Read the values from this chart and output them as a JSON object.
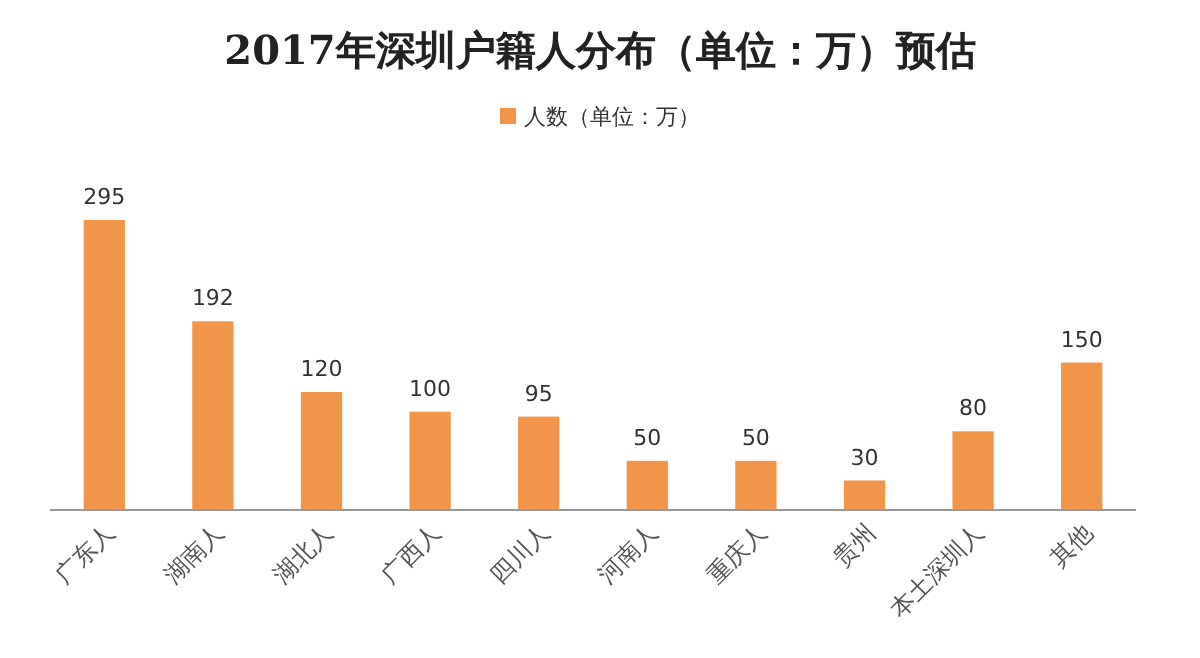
{
  "chart_data": {
    "type": "bar",
    "title": "2017年深圳户籍人分布（单位：万）预估",
    "categories": [
      "广东人",
      "湖南人",
      "湖北人",
      "广西人",
      "四川人",
      "河南人",
      "重庆人",
      "贵州",
      "本土深圳人",
      "其他"
    ],
    "series": [
      {
        "name": "人数（单位：万）",
        "color": "#f0954a",
        "values": [
          295,
          192,
          120,
          100,
          95,
          50,
          50,
          30,
          80,
          150
        ]
      }
    ],
    "data_labels": true,
    "legend": "top",
    "grid": false
  }
}
